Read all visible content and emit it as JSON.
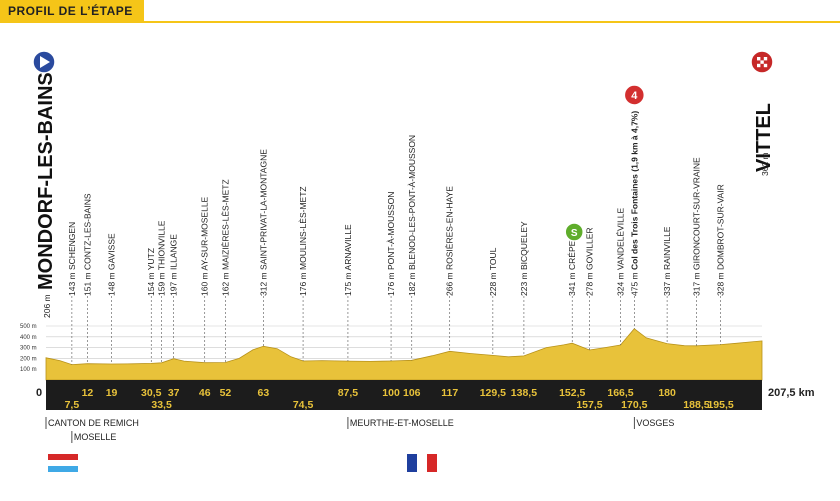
{
  "header": {
    "title": "PROFIL DE L’ÉTAPE"
  },
  "colors": {
    "accent": "#f5c518",
    "terrain": "#e8c23a",
    "band": "#1c1c1c",
    "start": "#2a4a9e",
    "climb": "#d32f2f",
    "sprint": "#5fad2b"
  },
  "chart_data": {
    "type": "area",
    "title": "",
    "xlabel": "",
    "ylabel": "",
    "unit_x": "km",
    "total_distance_label": "207,5 km",
    "zero_label": "0",
    "y_ticks": [
      "100 m",
      "200 m",
      "300 m",
      "400 m",
      "500 m"
    ],
    "ylim": [
      0,
      500
    ],
    "start": {
      "name": "MONDORF-LES-BAINS",
      "alt": "206 m",
      "icon": "start-arrow-icon"
    },
    "finish": {
      "name": "VITTEL",
      "alt": "362 m",
      "icon": "finish-flag-icon"
    },
    "climb": {
      "category": "4",
      "km": 170.5
    },
    "sprint": {
      "label": "S",
      "km": 152.5
    },
    "waypoints": [
      {
        "km": 7.5,
        "km_label": "7,5",
        "alt": "143 m",
        "name": "SCHENGEN"
      },
      {
        "km": 12,
        "km_label": "12",
        "alt": "151 m",
        "name": "CONTZ-LES-BAINS"
      },
      {
        "km": 19,
        "km_label": "19",
        "alt": "148 m",
        "name": "GAVISSE"
      },
      {
        "km": 30.5,
        "km_label": "30,5",
        "alt": "154 m",
        "name": "YUTZ"
      },
      {
        "km": 33.5,
        "km_label": "33,5",
        "alt": "159 m",
        "name": "THIONVILLE"
      },
      {
        "km": 37,
        "km_label": "37",
        "alt": "197 m",
        "name": "ILLANGE"
      },
      {
        "km": 46,
        "km_label": "46",
        "alt": "160 m",
        "name": "AY-SUR-MOSELLE"
      },
      {
        "km": 52,
        "km_label": "52",
        "alt": "162 m",
        "name": "MAIZIÈRES-LÈS-METZ"
      },
      {
        "km": 63,
        "km_label": "63",
        "alt": "312 m",
        "name": "SAINT-PRIVAT-LA-MONTAGNE"
      },
      {
        "km": 74.5,
        "km_label": "74,5",
        "alt": "176 m",
        "name": "MOULINS-LÈS-METZ"
      },
      {
        "km": 87.5,
        "km_label": "87,5",
        "alt": "175 m",
        "name": "ARNAVILLE"
      },
      {
        "km": 100,
        "km_label": "100",
        "alt": "176 m",
        "name": "PONT-À-MOUSSON"
      },
      {
        "km": 106,
        "km_label": "106",
        "alt": "182 m",
        "name": "BLENOD-LES-PONT-À-MOUSSON"
      },
      {
        "km": 117,
        "km_label": "117",
        "alt": "266 m",
        "name": "ROSIÈRES-EN-HAYE"
      },
      {
        "km": 129.5,
        "km_label": "129,5",
        "alt": "228 m",
        "name": "TOUL"
      },
      {
        "km": 138.5,
        "km_label": "138,5",
        "alt": "223 m",
        "name": "BICQUELEY"
      },
      {
        "km": 152.5,
        "km_label": "152,5",
        "alt": "341 m",
        "name": "CRÉPEY"
      },
      {
        "km": 157.5,
        "km_label": "157,5",
        "alt": "278 m",
        "name": "GOVILLER"
      },
      {
        "km": 166.5,
        "km_label": "166,5",
        "alt": "324 m",
        "name": "VANDELÉVILLE"
      },
      {
        "km": 170.5,
        "km_label": "170,5",
        "alt": "475 m",
        "name": "Col des Trois Fontaines (1,9 km à 4,7%)"
      },
      {
        "km": 180,
        "km_label": "180",
        "alt": "337 m",
        "name": "RAINVILLE"
      },
      {
        "km": 188.5,
        "km_label": "188,5",
        "alt": "317 m",
        "name": "GIRONCOURT-SUR-VRAINE"
      },
      {
        "km": 195.5,
        "km_label": "195,5",
        "alt": "328 m",
        "name": "DOMBROT-SUR-VAIR"
      }
    ],
    "elevation": [
      [
        0,
        206
      ],
      [
        4,
        180
      ],
      [
        7.5,
        143
      ],
      [
        12,
        151
      ],
      [
        19,
        148
      ],
      [
        25,
        150
      ],
      [
        30.5,
        154
      ],
      [
        33.5,
        159
      ],
      [
        37,
        197
      ],
      [
        40,
        175
      ],
      [
        46,
        160
      ],
      [
        52,
        162
      ],
      [
        56,
        200
      ],
      [
        60,
        280
      ],
      [
        63,
        312
      ],
      [
        67,
        290
      ],
      [
        71,
        215
      ],
      [
        74.5,
        176
      ],
      [
        80,
        180
      ],
      [
        87.5,
        175
      ],
      [
        94,
        172
      ],
      [
        100,
        176
      ],
      [
        106,
        182
      ],
      [
        112,
        225
      ],
      [
        117,
        266
      ],
      [
        123,
        245
      ],
      [
        129.5,
        228
      ],
      [
        134,
        215
      ],
      [
        138.5,
        223
      ],
      [
        145,
        300
      ],
      [
        150,
        325
      ],
      [
        152.5,
        341
      ],
      [
        157.5,
        278
      ],
      [
        162,
        300
      ],
      [
        166.5,
        324
      ],
      [
        170.5,
        475
      ],
      [
        174,
        390
      ],
      [
        180,
        337
      ],
      [
        185,
        318
      ],
      [
        188.5,
        317
      ],
      [
        195.5,
        328
      ],
      [
        200,
        340
      ],
      [
        204,
        352
      ],
      [
        207.5,
        362
      ]
    ],
    "regions": [
      {
        "name": "CANTON DE REMICH",
        "km": 0
      },
      {
        "name": "MOSELLE",
        "km": 7.5
      },
      {
        "name": "MEURTHE-ET-MOSELLE",
        "km": 87.5
      },
      {
        "name": "VOSGES",
        "km": 170.5
      }
    ],
    "flags": [
      {
        "country": "Luxembourg",
        "km": 0,
        "icon": "flag-luxembourg-icon"
      },
      {
        "country": "France",
        "km": 100,
        "icon": "flag-france-icon"
      }
    ]
  }
}
